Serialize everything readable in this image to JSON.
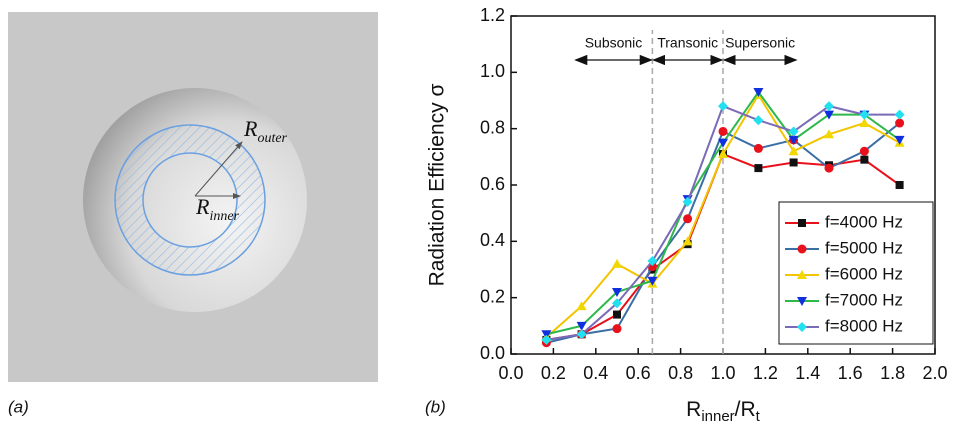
{
  "panel_a": {
    "label": "(a)",
    "r_outer": {
      "symbol": "R",
      "subscript": "outer"
    },
    "r_inner": {
      "symbol": "R",
      "subscript": "inner"
    }
  },
  "chart_data": {
    "type": "line",
    "panel_label": "(b)",
    "ylabel": "Radiation Efficiency σ",
    "xlabel": [
      {
        "text": "R",
        "sub": false
      },
      {
        "text": "inner",
        "sub": true
      },
      {
        "text": "/R",
        "sub": false
      },
      {
        "text": "t",
        "sub": true
      }
    ],
    "x": [
      0.167,
      0.333,
      0.5,
      0.667,
      0.833,
      1.0,
      1.167,
      1.333,
      1.5,
      1.667,
      1.833
    ],
    "xlim": [
      0,
      2
    ],
    "ylim": [
      0,
      1.2
    ],
    "xticks": [
      {
        "value": 0,
        "label": "0.0"
      },
      {
        "value": 0.2,
        "label": "0.2"
      },
      {
        "value": 0.4,
        "label": "0.4"
      },
      {
        "value": 0.6,
        "label": "0.6"
      },
      {
        "value": 0.8,
        "label": "0.8"
      },
      {
        "value": 1,
        "label": "1.0"
      },
      {
        "value": 1.2,
        "label": "1.2"
      },
      {
        "value": 1.4,
        "label": "1.4"
      },
      {
        "value": 1.6,
        "label": "1.6"
      },
      {
        "value": 1.8,
        "label": "1.8"
      },
      {
        "value": 2,
        "label": "2.0"
      }
    ],
    "yticks": [
      {
        "value": 0,
        "label": "0.0"
      },
      {
        "value": 0.2,
        "label": "0.2"
      },
      {
        "value": 0.4,
        "label": "0.4"
      },
      {
        "value": 0.6,
        "label": "0.6"
      },
      {
        "value": 0.8,
        "label": "0.8"
      },
      {
        "value": 1,
        "label": "1.0"
      },
      {
        "value": 1.2,
        "label": "1.2"
      }
    ],
    "vlines": [
      0.667,
      1.0
    ],
    "regions": [
      {
        "label": "Subsonic",
        "from": 0.3,
        "to": 0.667
      },
      {
        "label": "Transonic",
        "from": 0.667,
        "to": 1.0
      },
      {
        "label": "Supersonic",
        "from": 1.0,
        "to": 1.35
      }
    ],
    "legend": "lower right",
    "series": [
      {
        "name": "f=4000 Hz",
        "color": "#e8101a",
        "marker": "square",
        "marker_color": "#111111",
        "values": [
          0.05,
          0.07,
          0.14,
          0.3,
          0.39,
          0.71,
          0.66,
          0.68,
          0.67,
          0.69,
          0.6
        ]
      },
      {
        "name": "f=5000 Hz",
        "color": "#3a6ea5",
        "marker": "circle",
        "marker_color": "#e8101a",
        "values": [
          0.04,
          0.07,
          0.09,
          0.31,
          0.48,
          0.79,
          0.73,
          0.76,
          0.66,
          0.72,
          0.82
        ]
      },
      {
        "name": "f=6000 Hz",
        "color": "#f2c500",
        "marker": "triangle",
        "marker_color": "#f2d800",
        "values": [
          0.06,
          0.17,
          0.32,
          0.25,
          0.4,
          0.71,
          0.92,
          0.72,
          0.78,
          0.82,
          0.75
        ]
      },
      {
        "name": "f=7000 Hz",
        "color": "#2db84a",
        "marker": "triangle-down",
        "marker_color": "#1030e0",
        "values": [
          0.07,
          0.1,
          0.22,
          0.26,
          0.55,
          0.75,
          0.93,
          0.76,
          0.85,
          0.85,
          0.76
        ]
      },
      {
        "name": "f=8000 Hz",
        "color": "#7a6ab8",
        "marker": "diamond",
        "marker_color": "#22e0f0",
        "values": [
          0.05,
          0.07,
          0.18,
          0.33,
          0.54,
          0.88,
          0.83,
          0.79,
          0.88,
          0.85,
          0.85
        ]
      }
    ]
  }
}
